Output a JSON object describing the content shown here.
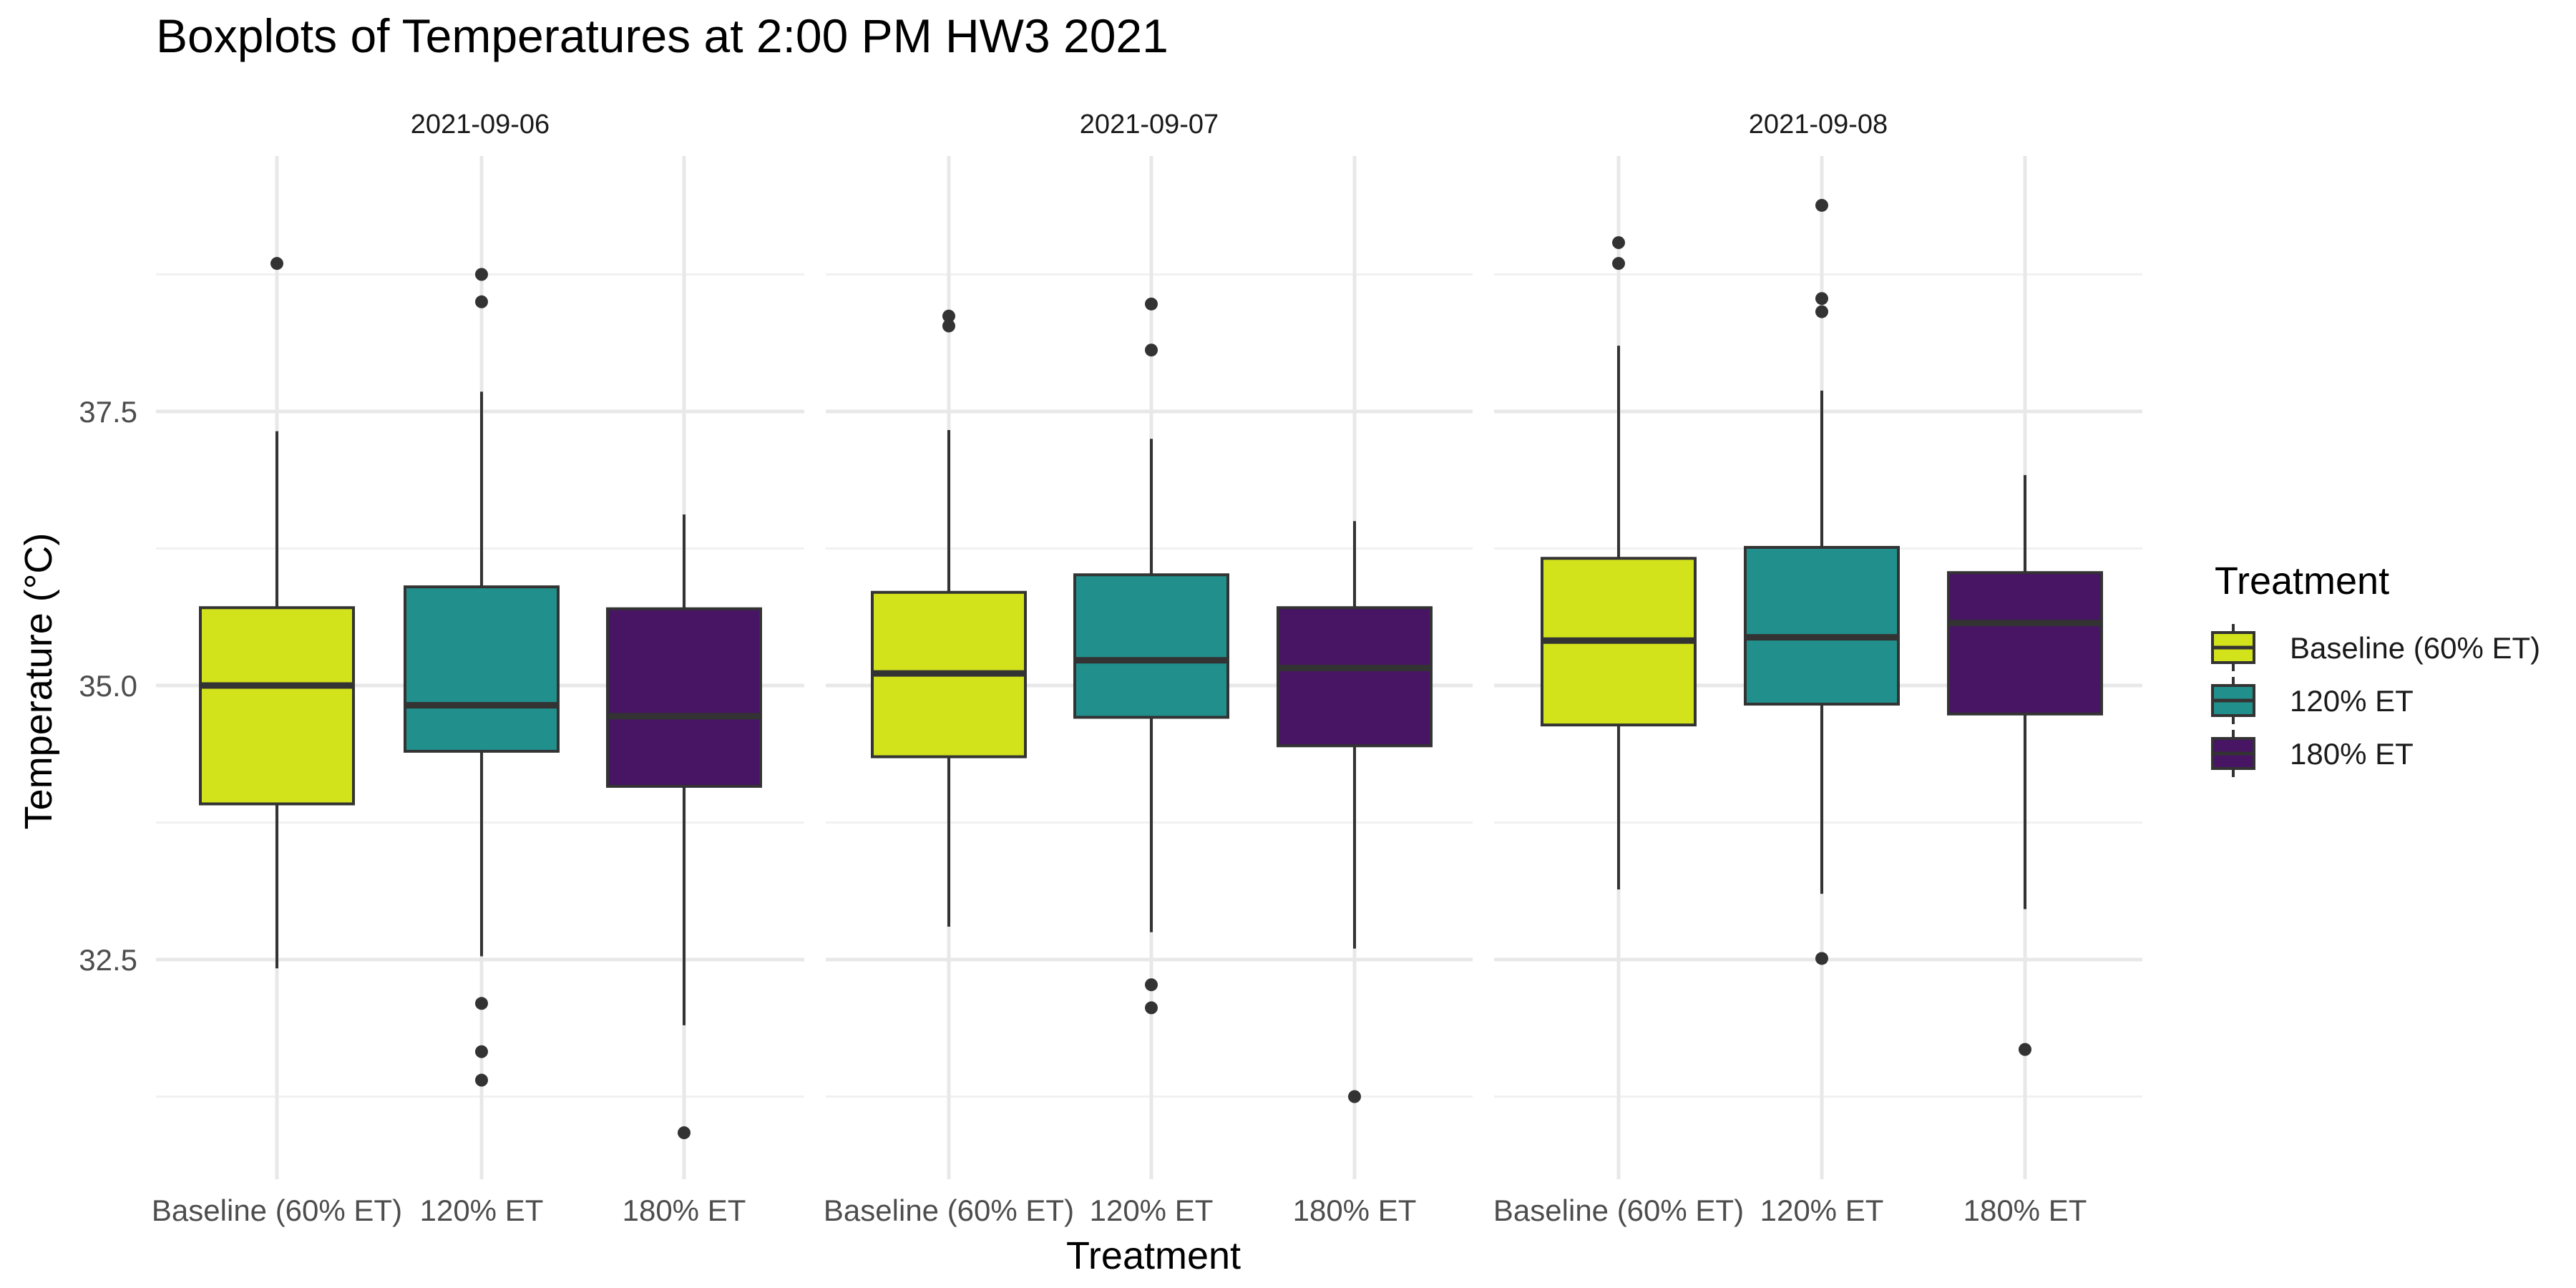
{
  "chart_data": {
    "type": "boxplot",
    "title": "Boxplots of Temperatures at 2:00 PM HW3 2021",
    "xlabel": "Treatment",
    "ylabel": "Temperature (°C)",
    "ylim": [
      30.7,
      40.2
    ],
    "yticks": [
      32.5,
      35.0,
      37.5
    ],
    "y_tick_labels": [
      "32.5",
      "35.0",
      "37.5"
    ],
    "grid": true,
    "legend": {
      "title": "Treatment",
      "placement": "right"
    },
    "categories": [
      "Baseline (60% ET)",
      "120% ET",
      "180% ET"
    ],
    "colors": {
      "Baseline (60% ET)": "#d2e21b",
      "120% ET": "#21908c",
      "180% ET": "#471564"
    },
    "facets": [
      {
        "label": "2021-09-06",
        "boxes": [
          {
            "treatment": "Baseline (60% ET)",
            "min": 32.42,
            "q1": 33.92,
            "median": 35.0,
            "q3": 35.71,
            "max": 37.32,
            "outliers": [
              38.85
            ]
          },
          {
            "treatment": "120% ET",
            "min": 32.53,
            "q1": 34.4,
            "median": 34.82,
            "q3": 35.9,
            "max": 37.68,
            "outliers": [
              38.75,
              38.5,
              32.1,
              31.66,
              31.4
            ]
          },
          {
            "treatment": "180% ET",
            "min": 31.9,
            "q1": 34.08,
            "median": 34.72,
            "q3": 35.7,
            "max": 36.56,
            "outliers": [
              30.92
            ]
          }
        ]
      },
      {
        "label": "2021-09-07",
        "boxes": [
          {
            "treatment": "Baseline (60% ET)",
            "min": 32.8,
            "q1": 34.35,
            "median": 35.11,
            "q3": 35.85,
            "max": 37.33,
            "outliers": [
              38.37,
              38.28
            ]
          },
          {
            "treatment": "120% ET",
            "min": 32.75,
            "q1": 34.71,
            "median": 35.23,
            "q3": 36.01,
            "max": 37.25,
            "outliers": [
              38.48,
              38.06,
              32.27,
              32.06
            ]
          },
          {
            "treatment": "180% ET",
            "min": 32.6,
            "q1": 34.45,
            "median": 35.16,
            "q3": 35.71,
            "max": 36.5,
            "outliers": [
              31.25
            ]
          }
        ]
      },
      {
        "label": "2021-09-08",
        "boxes": [
          {
            "treatment": "Baseline (60% ET)",
            "min": 33.14,
            "q1": 34.64,
            "median": 35.41,
            "q3": 36.16,
            "max": 38.1,
            "outliers": [
              39.04,
              38.85
            ]
          },
          {
            "treatment": "120% ET",
            "min": 33.1,
            "q1": 34.83,
            "median": 35.44,
            "q3": 36.26,
            "max": 37.69,
            "outliers": [
              39.38,
              38.53,
              38.41,
              32.51
            ]
          },
          {
            "treatment": "180% ET",
            "min": 32.96,
            "q1": 34.74,
            "median": 35.57,
            "q3": 36.03,
            "max": 36.92,
            "outliers": [
              31.68
            ]
          }
        ]
      }
    ]
  }
}
